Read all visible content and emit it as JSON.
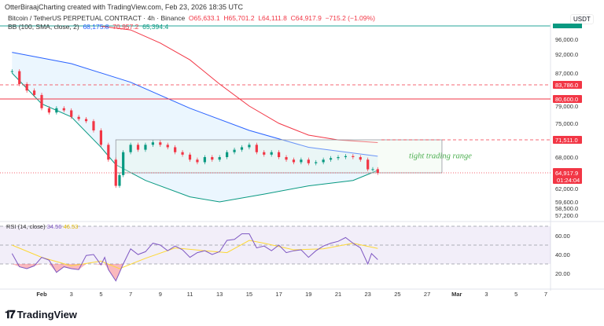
{
  "credit": "OtterBiraajCharting created with TradingView.com, Feb 23, 2026 18:35 UTC",
  "symbol": "Bitcoin / TetherUS PERPETUAL CONTRACT · 4h · Binance",
  "ohlc": {
    "o": "O65,633.1",
    "h": "H65,701.2",
    "l": "L64,111.8",
    "c": "C64,917.9",
    "chg": "−715.2 (−1.09%)"
  },
  "bb": {
    "label": "BB (100, SMA, close, 2)",
    "basis": "68,175.8",
    "upper": "70,957.2",
    "lower": "65,394.4"
  },
  "rsi": {
    "label": "RSI (14, close)",
    "value": "34.56",
    "ma": "46.53"
  },
  "currency": "USDT",
  "countdown": "01:24:04",
  "annotation": "tight trading range",
  "brand": "TradingView",
  "colors": {
    "up": "#089981",
    "down": "#f23645",
    "basis": "#2962ff",
    "upper": "#f23645",
    "lower": "#089981",
    "rsi": "#7e57c2",
    "rsi_ma": "#fdd835",
    "box": "#9598a1",
    "text_green": "#4caf50"
  },
  "chart_data": {
    "type": "candlestick",
    "price_ticks": [
      96000,
      92000,
      87000,
      83786,
      80600,
      79000,
      75000,
      71511,
      68000,
      64917.9,
      62000,
      59600,
      58500,
      57200
    ],
    "price_tick_labels": [
      "96,000.0",
      "92,000.0",
      "87,000.0",
      "83,786.0",
      "80,600.0",
      "79,000.0",
      "75,000.0",
      "71,511.0",
      "68,000.0",
      "64,917.9",
      "62,000.0",
      "59,600.0",
      "58,500.0",
      "57,200.0"
    ],
    "highlighted_levels": [
      {
        "value": 83786,
        "label": "83,786.0",
        "style": "dashed"
      },
      {
        "value": 80600,
        "label": "80,600.0",
        "style": "solid"
      },
      {
        "value": 71511,
        "label": "71,511.0",
        "style": "dashed"
      },
      {
        "value": 64917.9,
        "label": "64,917.9",
        "style": "dotted"
      }
    ],
    "range_box": {
      "from": "2026-02-06",
      "to": "2026-02-28",
      "high": 71511,
      "low": 64917.9
    },
    "x_ticks": [
      "Feb",
      "3",
      "5",
      "7",
      "9",
      "11",
      "13",
      "15",
      "17",
      "19",
      "21",
      "23",
      "25",
      "27",
      "Mar",
      "3",
      "5",
      "7"
    ],
    "x_tick_dates": [
      "2026-02-01",
      "2026-02-03",
      "2026-02-05",
      "2026-02-07",
      "2026-02-09",
      "2026-02-11",
      "2026-02-13",
      "2026-02-15",
      "2026-02-17",
      "2026-02-19",
      "2026-02-21",
      "2026-02-23",
      "2026-02-25",
      "2026-02-27",
      "2026-03-01",
      "2026-03-03",
      "2026-03-05",
      "2026-03-07"
    ],
    "close": [
      [
        "2026-01-30",
        87500
      ],
      [
        "2026-01-30T12:00",
        84000
      ],
      [
        "2026-01-31",
        82500
      ],
      [
        "2026-01-31T12:00",
        81500
      ],
      [
        "2026-02-01",
        78500
      ],
      [
        "2026-02-01T12:00",
        77500
      ],
      [
        "2026-02-02",
        78500
      ],
      [
        "2026-02-02T12:00",
        78000
      ],
      [
        "2026-02-03",
        76500
      ],
      [
        "2026-02-03T12:00",
        76000
      ],
      [
        "2026-02-04",
        75500
      ],
      [
        "2026-02-04T12:00",
        73500
      ],
      [
        "2026-02-05",
        70500
      ],
      [
        "2026-02-05T12:00",
        67500
      ],
      [
        "2026-02-06",
        62500
      ],
      [
        "2026-02-06T06:00",
        64500
      ],
      [
        "2026-02-06T12:00",
        69000
      ],
      [
        "2026-02-07",
        70500
      ],
      [
        "2026-02-07T12:00",
        69500
      ],
      [
        "2026-02-08",
        70500
      ],
      [
        "2026-02-08T12:00",
        71000
      ],
      [
        "2026-02-09",
        70500
      ],
      [
        "2026-02-09T12:00",
        70000
      ],
      [
        "2026-02-10",
        69000
      ],
      [
        "2026-02-10T12:00",
        68500
      ],
      [
        "2026-02-11",
        67500
      ],
      [
        "2026-02-11T12:00",
        67000
      ],
      [
        "2026-02-12",
        68000
      ],
      [
        "2026-02-12T12:00",
        67500
      ],
      [
        "2026-02-13",
        68000
      ],
      [
        "2026-02-13T12:00",
        69000
      ],
      [
        "2026-02-14",
        69500
      ],
      [
        "2026-02-14T12:00",
        70000
      ],
      [
        "2026-02-15",
        70500
      ],
      [
        "2026-02-15T12:00",
        69000
      ],
      [
        "2026-02-16",
        68500
      ],
      [
        "2026-02-16T12:00",
        69000
      ],
      [
        "2026-02-17",
        68000
      ],
      [
        "2026-02-17T12:00",
        67500
      ],
      [
        "2026-02-18",
        67000
      ],
      [
        "2026-02-18T12:00",
        67500
      ],
      [
        "2026-02-19",
        66800
      ],
      [
        "2026-02-19T12:00",
        67000
      ],
      [
        "2026-02-20",
        67500
      ],
      [
        "2026-02-20T12:00",
        67800
      ],
      [
        "2026-02-21",
        68000
      ],
      [
        "2026-02-21T12:00",
        68200
      ],
      [
        "2026-02-22",
        68000
      ],
      [
        "2026-02-22T12:00",
        67500
      ],
      [
        "2026-02-23",
        65600
      ],
      [
        "2026-02-23T08:00",
        65633
      ],
      [
        "2026-02-23T16:00",
        64917.9
      ]
    ],
    "bb_basis": [
      [
        "2026-01-30",
        92500
      ],
      [
        "2026-02-03",
        89500
      ],
      [
        "2026-02-07",
        84500
      ],
      [
        "2026-02-11",
        78500
      ],
      [
        "2026-02-15",
        73500
      ],
      [
        "2026-02-19",
        70000
      ],
      [
        "2026-02-23T16:00",
        68175.8
      ]
    ],
    "bb_upper": [
      [
        "2026-02-05",
        99500
      ],
      [
        "2026-02-07",
        98500
      ],
      [
        "2026-02-09",
        95000
      ],
      [
        "2026-02-11",
        90500
      ],
      [
        "2026-02-13",
        84000
      ],
      [
        "2026-02-15",
        79000
      ],
      [
        "2026-02-17",
        75000
      ],
      [
        "2026-02-19",
        72500
      ],
      [
        "2026-02-21",
        71500
      ],
      [
        "2026-02-23T16:00",
        70957.2
      ]
    ],
    "bb_lower": [
      [
        "2026-01-30",
        87000
      ],
      [
        "2026-02-01",
        79500
      ],
      [
        "2026-02-03",
        76500
      ],
      [
        "2026-02-05",
        70000
      ],
      [
        "2026-02-06",
        66500
      ],
      [
        "2026-02-08",
        63500
      ],
      [
        "2026-02-11",
        60500
      ],
      [
        "2026-02-13",
        59600
      ],
      [
        "2026-02-16",
        61000
      ],
      [
        "2026-02-19",
        62500
      ],
      [
        "2026-02-22",
        63500
      ],
      [
        "2026-02-23T16:00",
        65394.4
      ]
    ],
    "rsi_ticks": [
      60,
      40,
      20
    ],
    "rsi_band": [
      30,
      70
    ],
    "rsi_series": [
      [
        "2026-01-30",
        41
      ],
      [
        "2026-01-30T12:00",
        27
      ],
      [
        "2026-01-31",
        25
      ],
      [
        "2026-01-31T12:00",
        28
      ],
      [
        "2026-02-01",
        37
      ],
      [
        "2026-02-01T12:00",
        34
      ],
      [
        "2026-02-02",
        21
      ],
      [
        "2026-02-02T12:00",
        27
      ],
      [
        "2026-02-03",
        25
      ],
      [
        "2026-02-03T12:00",
        24
      ],
      [
        "2026-02-04",
        39
      ],
      [
        "2026-02-04T12:00",
        40
      ],
      [
        "2026-02-05",
        29
      ],
      [
        "2026-02-05T06:00",
        37
      ],
      [
        "2026-02-05T12:00",
        24
      ],
      [
        "2026-02-06",
        12
      ],
      [
        "2026-02-06T12:00",
        30
      ],
      [
        "2026-02-07",
        46
      ],
      [
        "2026-02-07T12:00",
        40
      ],
      [
        "2026-02-08",
        43
      ],
      [
        "2026-02-08T12:00",
        52
      ],
      [
        "2026-02-09",
        50
      ],
      [
        "2026-02-09T12:00",
        44
      ],
      [
        "2026-02-10",
        49
      ],
      [
        "2026-02-10T12:00",
        45
      ],
      [
        "2026-02-11",
        37
      ],
      [
        "2026-02-11T12:00",
        42
      ],
      [
        "2026-02-12",
        44
      ],
      [
        "2026-02-12T12:00",
        40
      ],
      [
        "2026-02-13",
        43
      ],
      [
        "2026-02-13T12:00",
        55
      ],
      [
        "2026-02-14",
        56
      ],
      [
        "2026-02-14T12:00",
        62
      ],
      [
        "2026-02-15",
        62
      ],
      [
        "2026-02-15T12:00",
        47
      ],
      [
        "2026-02-16",
        49
      ],
      [
        "2026-02-16T12:00",
        44
      ],
      [
        "2026-02-17",
        50
      ],
      [
        "2026-02-17T12:00",
        42
      ],
      [
        "2026-02-18",
        44
      ],
      [
        "2026-02-18T12:00",
        45
      ],
      [
        "2026-02-19",
        37
      ],
      [
        "2026-02-19T12:00",
        44
      ],
      [
        "2026-02-20",
        49
      ],
      [
        "2026-02-20T12:00",
        52
      ],
      [
        "2026-02-21",
        54
      ],
      [
        "2026-02-21T12:00",
        58
      ],
      [
        "2026-02-22",
        52
      ],
      [
        "2026-02-22T12:00",
        47
      ],
      [
        "2026-02-23",
        30
      ],
      [
        "2026-02-23T06:00",
        41
      ],
      [
        "2026-02-23T16:00",
        34.56
      ]
    ],
    "rsi_ma_series": [
      [
        "2026-01-30",
        50
      ],
      [
        "2026-02-01",
        37
      ],
      [
        "2026-02-03",
        28
      ],
      [
        "2026-02-05",
        33
      ],
      [
        "2026-02-06T06:00",
        25
      ],
      [
        "2026-02-08",
        36
      ],
      [
        "2026-02-10",
        47
      ],
      [
        "2026-02-12",
        44
      ],
      [
        "2026-02-13T12:00",
        42
      ],
      [
        "2026-02-15",
        55
      ],
      [
        "2026-02-16",
        52
      ],
      [
        "2026-02-18",
        45
      ],
      [
        "2026-02-20",
        46
      ],
      [
        "2026-02-22",
        52
      ],
      [
        "2026-02-23T16:00",
        46.53
      ]
    ]
  }
}
